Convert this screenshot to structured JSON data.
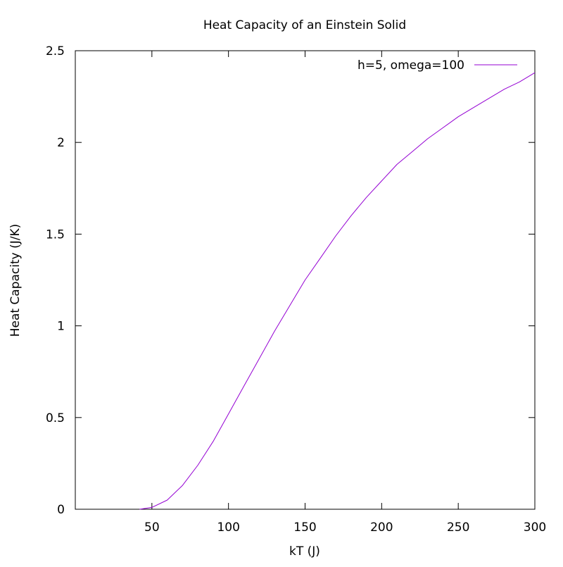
{
  "chart_data": {
    "type": "line",
    "title": "Heat Capacity of an Einstein Solid",
    "xlabel": "kT (J)",
    "ylabel": "Heat Capacity (J/K)",
    "xlim": [
      0,
      300
    ],
    "ylim": [
      0,
      2.5
    ],
    "x_ticks": [
      50,
      100,
      150,
      200,
      250,
      300
    ],
    "y_ticks": [
      0,
      0.5,
      1,
      1.5,
      2,
      2.5
    ],
    "y_tick_labels": [
      "0",
      "0.5",
      "1",
      "1.5",
      "2",
      "2.5"
    ],
    "grid": false,
    "legend_position": "top-right",
    "series": [
      {
        "name": "h=5, omega=100",
        "color": "#9400D3",
        "x": [
          42,
          50,
          60,
          70,
          80,
          90,
          100,
          110,
          120,
          130,
          140,
          150,
          160,
          170,
          180,
          190,
          200,
          210,
          220,
          230,
          240,
          250,
          260,
          270,
          280,
          290,
          300
        ],
        "y": [
          0.0,
          0.01,
          0.05,
          0.13,
          0.24,
          0.37,
          0.52,
          0.67,
          0.82,
          0.97,
          1.11,
          1.25,
          1.37,
          1.49,
          1.6,
          1.7,
          1.79,
          1.88,
          1.95,
          2.02,
          2.08,
          2.14,
          2.19,
          2.24,
          2.29,
          2.33,
          2.38
        ]
      }
    ]
  }
}
